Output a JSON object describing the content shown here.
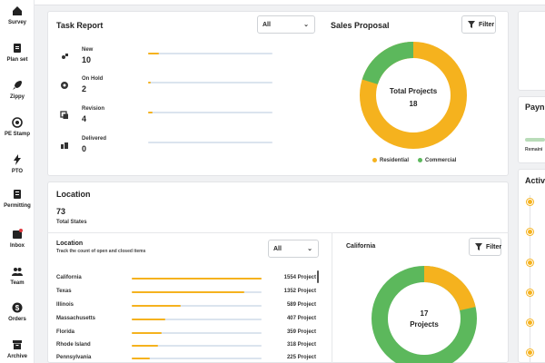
{
  "sidebar": {
    "items": [
      {
        "label": "Survey",
        "icon": "home-icon"
      },
      {
        "label": "Plan set",
        "icon": "document-icon"
      },
      {
        "label": "Zippy",
        "icon": "rocket-icon"
      },
      {
        "label": "PE Stamp",
        "icon": "stamp-icon"
      },
      {
        "label": "PTO",
        "icon": "bolt-icon"
      },
      {
        "label": "Permitting",
        "icon": "clipboard-icon"
      },
      {
        "label": "Inbox",
        "icon": "inbox-icon"
      },
      {
        "label": "Team",
        "icon": "team-icon"
      },
      {
        "label": "Orders",
        "icon": "dollar-icon"
      },
      {
        "label": "Archive",
        "icon": "archive-icon"
      }
    ]
  },
  "task_report": {
    "title": "Task Report",
    "filter_value": "All",
    "rows": [
      {
        "name": "New",
        "count": "10",
        "progress": 0.09
      },
      {
        "name": "On Hold",
        "count": "2",
        "progress": 0.02
      },
      {
        "name": "Revision",
        "count": "4",
        "progress": 0.04
      },
      {
        "name": "Delivered",
        "count": "0",
        "progress": 0.0
      }
    ]
  },
  "sales_proposal": {
    "title": "Sales Proposal",
    "filter_label": "Filter",
    "center_title": "Total Projects",
    "center_value": "18",
    "legend": [
      {
        "label": "Residential",
        "color": "#f5b21e"
      },
      {
        "label": "Commercial",
        "color": "#5cb85c"
      }
    ]
  },
  "location": {
    "title": "Location",
    "total_value": "73",
    "total_label": "Total States",
    "sub_title": "Location",
    "sub_desc": "Track the count of open and closed items",
    "filter_value": "All",
    "rows": [
      {
        "name": "California",
        "value": "1554 Project",
        "progress": 1.0
      },
      {
        "name": "Texas",
        "value": "1352 Project",
        "progress": 0.87
      },
      {
        "name": "Illinois",
        "value": "589 Project",
        "progress": 0.38
      },
      {
        "name": "Massachusetts",
        "value": "407 Project",
        "progress": 0.26
      },
      {
        "name": "Florida",
        "value": "359 Project",
        "progress": 0.23
      },
      {
        "name": "Rhode Island",
        "value": "318 Project",
        "progress": 0.2
      },
      {
        "name": "Pennsylvania",
        "value": "225 Project",
        "progress": 0.14
      }
    ]
  },
  "california": {
    "title": "California",
    "filter_label": "Filter",
    "center_value": "17",
    "center_label": "Projects"
  },
  "right_panel": {
    "payments_title": "Payn",
    "payments_sub": "Remaini",
    "activity_title": "Activ"
  },
  "colors": {
    "residential": "#f5b21e",
    "commercial": "#5cb85c",
    "track": "#dbe4ee"
  }
}
